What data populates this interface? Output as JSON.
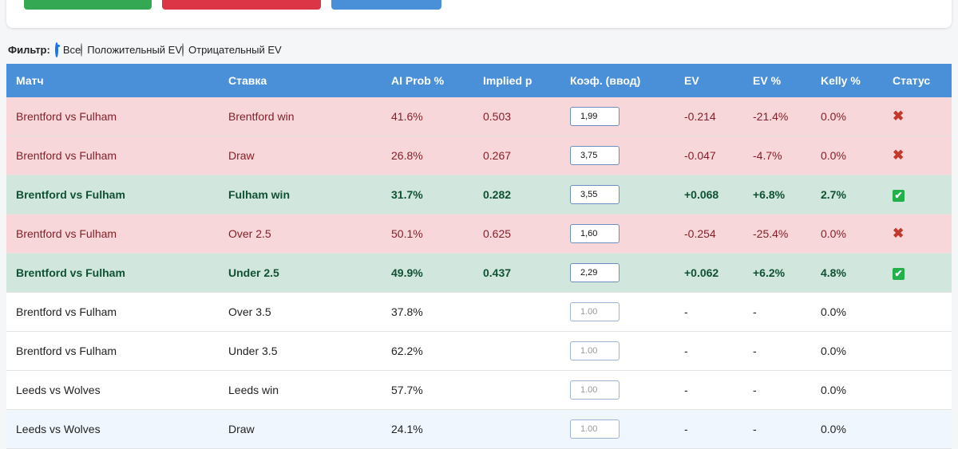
{
  "filter": {
    "label": "Фильтр:",
    "options": [
      "Все",
      "Положительный EV",
      "Отрицательный EV"
    ],
    "selected": 0
  },
  "table": {
    "header_color": "#4a90d9",
    "columns": [
      "Матч",
      "Ставка",
      "AI Prob %",
      "Implied p",
      "Коэф. (ввод)",
      "EV",
      "EV %",
      "Kelly %",
      "Статус"
    ],
    "rows": [
      {
        "background": "#f8d7da",
        "color": "#842029",
        "bold": false,
        "cells": [
          "Brentford vs Fulham",
          "Brentford win",
          "41.6%",
          "0.503",
          "1,99",
          "-0.214",
          "-21.4%",
          "0.0%",
          "✖"
        ]
      },
      {
        "background": "#f8d7da",
        "color": "#842029",
        "bold": false,
        "cells": [
          "Brentford vs Fulham",
          "Draw",
          "26.8%",
          "0.267",
          "3,75",
          "-0.047",
          "-4.7%",
          "0.0%",
          "✖"
        ]
      },
      {
        "background": "#d1e7dd",
        "color": "#0f5132",
        "bold": true,
        "cells": [
          "Brentford vs Fulham",
          "Fulham win",
          "31.7%",
          "0.282",
          "3,55",
          "+0.068",
          "+6.8%",
          "2.7%",
          "✔"
        ]
      },
      {
        "background": "#f8d7da",
        "color": "#842029",
        "bold": false,
        "cells": [
          "Brentford vs Fulham",
          "Over 2.5",
          "50.1%",
          "0.625",
          "1,60",
          "-0.254",
          "-25.4%",
          "0.0%",
          "✖"
        ]
      },
      {
        "background": "#d1e7dd",
        "color": "#0f5132",
        "bold": true,
        "cells": [
          "Brentford vs Fulham",
          "Under 2.5",
          "49.9%",
          "0.437",
          "2,29",
          "+0.062",
          "+6.2%",
          "4.8%",
          "✔"
        ]
      },
      {
        "background": "#ffffff",
        "color": "#222222",
        "bold": false,
        "placeholder": "1.00",
        "cells": [
          "Brentford vs Fulham",
          "Over 3.5",
          "37.8%",
          null,
          null,
          "-",
          "-",
          "0.0%",
          null
        ]
      },
      {
        "background": "#ffffff",
        "color": "#222222",
        "bold": false,
        "placeholder": "1.00",
        "cells": [
          "Brentford vs Fulham",
          "Under 3.5",
          "62.2%",
          null,
          null,
          "-",
          "-",
          "0.0%",
          null
        ]
      },
      {
        "background": "#ffffff",
        "color": "#222222",
        "bold": false,
        "placeholder": "1.00",
        "cells": [
          "Leeds vs Wolves",
          "Leeds win",
          "57.7%",
          null,
          null,
          "-",
          "-",
          "0.0%",
          null
        ]
      },
      {
        "background": "#f0f6fd",
        "color": "#222222",
        "bold": false,
        "placeholder": "1.00",
        "cells": [
          "Leeds vs Wolves",
          "Draw",
          "24.1%",
          null,
          null,
          "-",
          "-",
          "0.0%",
          null
        ]
      }
    ]
  }
}
